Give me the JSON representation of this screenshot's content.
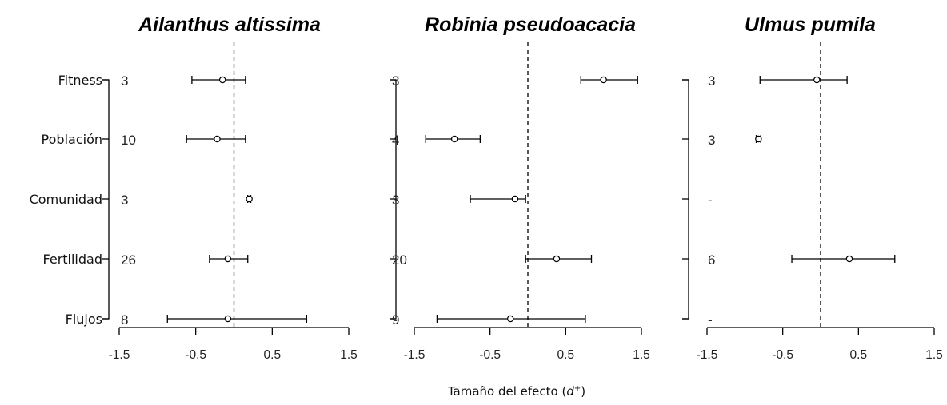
{
  "chart_data": {
    "type": "forest",
    "xlabel": "Tamaño del efecto",
    "xlabel_symbol": "d",
    "xlabel_sup": "+",
    "xlim": [
      -1.5,
      1.5
    ],
    "xticks": [
      "-1.5",
      "-0.5",
      "0.5",
      "1.5"
    ],
    "reference_line": 0,
    "categories": [
      "Fitness",
      "Población",
      "Comunidad",
      "Fertilidad",
      "Flujos"
    ],
    "panels": [
      {
        "title": "Ailanthus altissima",
        "n": [
          "3",
          "10",
          "3",
          "26",
          "8"
        ],
        "estimates": [
          -0.15,
          -0.22,
          0.2,
          -0.08,
          -0.08
        ],
        "ci_lower": [
          -0.55,
          -0.62,
          0.18,
          -0.32,
          -0.87
        ],
        "ci_upper": [
          0.15,
          0.15,
          0.22,
          0.18,
          0.95
        ]
      },
      {
        "title": "Robinia pseudoacacia",
        "n": [
          "3",
          "4",
          "3",
          "20",
          "9"
        ],
        "estimates": [
          1.0,
          -0.97,
          -0.17,
          0.38,
          -0.23
        ],
        "ci_lower": [
          0.7,
          -1.35,
          -0.76,
          -0.03,
          -1.2
        ],
        "ci_upper": [
          1.45,
          -0.63,
          -0.03,
          0.84,
          0.76
        ]
      },
      {
        "title": "Ulmus pumila",
        "n": [
          "3",
          "3",
          "-",
          "6",
          "-"
        ],
        "estimates": [
          -0.05,
          -0.82,
          null,
          0.38,
          null
        ],
        "ci_lower": [
          -0.8,
          -0.85,
          null,
          -0.38,
          null
        ],
        "ci_upper": [
          0.35,
          -0.79,
          null,
          0.98,
          null
        ]
      }
    ]
  }
}
